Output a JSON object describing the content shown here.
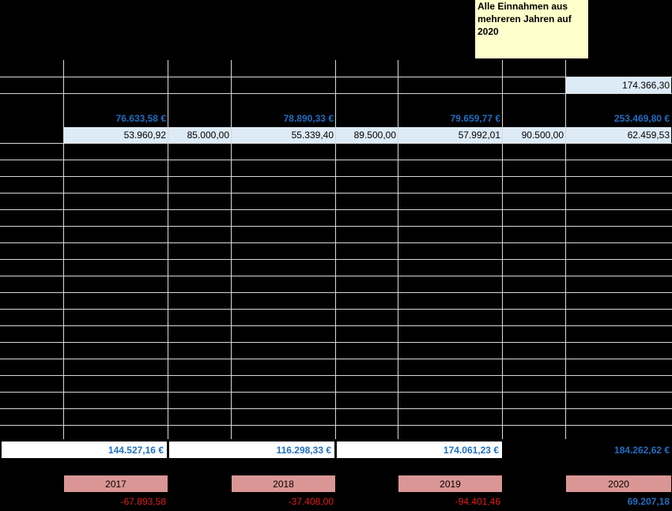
{
  "note": {
    "line1": "Alle Einnahmen aus",
    "line2": "mehreren Jahren auf",
    "line3": "2020"
  },
  "top_value": "174.366,30",
  "blue_row": [
    "76.633,58 €",
    "78.890,33 €",
    "79.659,77 €",
    "253.469,80 €"
  ],
  "light_row": [
    "53.960,92",
    "85.000,00",
    "55.339,40",
    "89.500,00",
    "57.992,01",
    "90.500,00",
    "62.459,53"
  ],
  "totals_row": [
    "144.527,16 €",
    "116.298,33 €",
    "174.061,23 €",
    "184.262,62 €"
  ],
  "years": [
    "2017",
    "2018",
    "2019",
    "2020"
  ],
  "diff_row": [
    "-67.893,58",
    "-37.408,00",
    "-94.401,46",
    "69.207,18"
  ],
  "colors": {
    "background": "#000000",
    "blue_text": "#1f6fc4",
    "red_text": "#e51b1b",
    "year_fill": "#da9694",
    "light_fill": "#ddebf7",
    "note_fill": "#ffffcc"
  }
}
